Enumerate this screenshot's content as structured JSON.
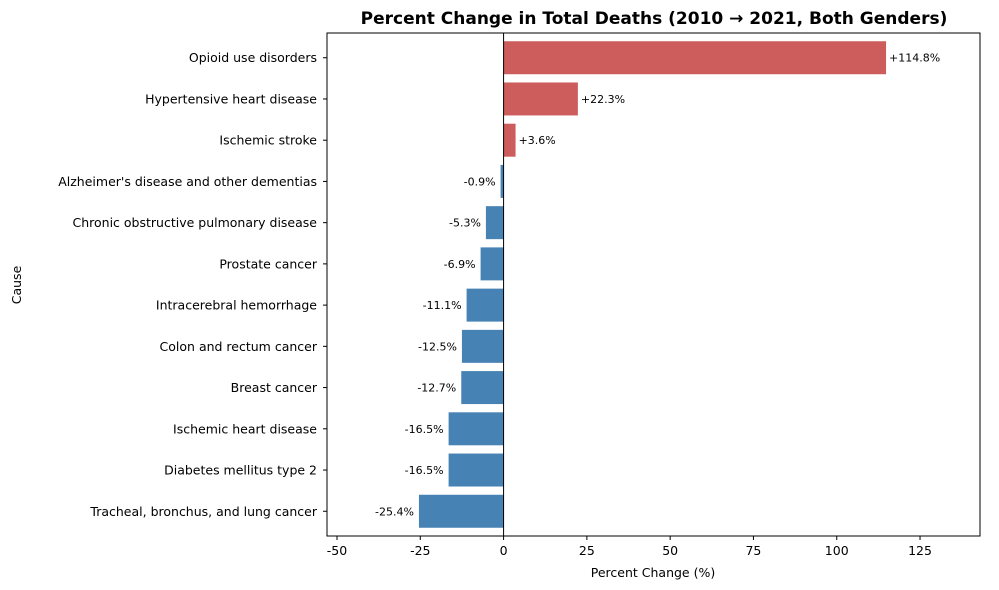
{
  "chart_data": {
    "type": "bar",
    "orientation": "horizontal",
    "title": "Percent Change in Total Deaths (2010 → 2021, Both Genders)",
    "xlabel": "Percent Change (%)",
    "ylabel": "Cause",
    "xlim": [
      -53,
      143
    ],
    "xticks": [
      -50,
      -25,
      0,
      25,
      50,
      75,
      100,
      125
    ],
    "categories": [
      "Opioid use disorders",
      "Hypertensive heart disease",
      "Ischemic stroke",
      "Alzheimer's disease and other dementias",
      "Chronic obstructive pulmonary disease",
      "Prostate cancer",
      "Intracerebral hemorrhage",
      "Colon and rectum cancer",
      "Breast cancer",
      "Ischemic heart disease",
      "Diabetes mellitus type 2",
      "Tracheal, bronchus, and lung cancer"
    ],
    "values": [
      114.8,
      22.3,
      3.6,
      -0.9,
      -5.3,
      -6.9,
      -11.1,
      -12.5,
      -12.7,
      -16.5,
      -16.5,
      -25.4
    ],
    "labels": [
      "+114.8%",
      "+22.3%",
      "+3.6%",
      "-0.9%",
      "-5.3%",
      "-6.9%",
      "-11.1%",
      "-12.5%",
      "-12.7%",
      "-16.5%",
      "-16.5%",
      "-25.4%"
    ],
    "colors": {
      "positive": "#cd5c5c",
      "negative": "#4682b4"
    },
    "grid": false,
    "zero_line": true
  }
}
